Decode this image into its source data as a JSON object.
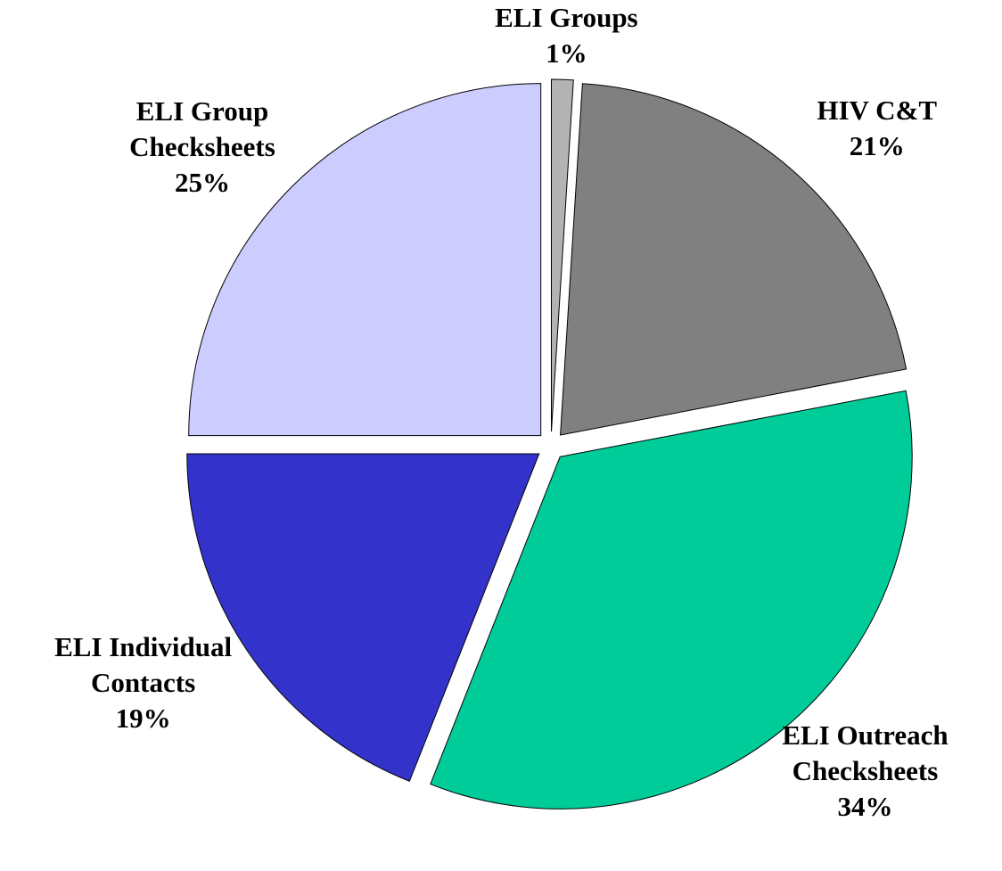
{
  "chart_data": {
    "type": "pie",
    "categories": [
      "ELI Groups",
      "HIV C&T",
      "ELI Outreach Checksheets",
      "ELI Individual Contacts",
      "ELI Group Checksheets"
    ],
    "values": [
      1,
      21,
      34,
      19,
      25
    ],
    "value_labels": [
      "1%",
      "21%",
      "34%",
      "19%",
      "25%"
    ],
    "colors": [
      "#b3b3b3",
      "#808080",
      "#00cc99",
      "#3333cc",
      "#ccccff"
    ]
  }
}
